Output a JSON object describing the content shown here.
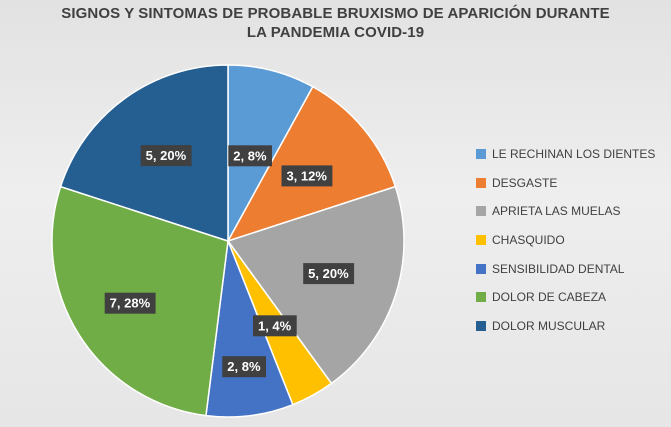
{
  "chart_data": {
    "type": "pie",
    "title_lines": [
      "SIGNOS Y SINTOMAS DE PROBABLE BRUXISMO DE APARICIÓN DURANTE",
      "LA PANDEMIA COVID-19"
    ],
    "legend_position": "right",
    "categories": [
      "LE RECHINAN LOS DIENTES",
      "DESGASTE",
      "APRIETA LAS MUELAS",
      "CHASQUIDO",
      "SENSIBILIDAD DENTAL",
      "DOLOR DE CABEZA",
      "DOLOR MUSCULAR"
    ],
    "values": [
      2,
      3,
      5,
      1,
      2,
      7,
      5
    ],
    "percentages": [
      "8%",
      "12%",
      "20%",
      "4%",
      "8%",
      "28%",
      "20%"
    ],
    "data_labels": [
      "2, 8%",
      "3, 12%",
      "5, 20%",
      "1, 4%",
      "2, 8%",
      "7, 28%",
      "5, 20%"
    ],
    "colors": [
      "#5B9BD5",
      "#ED7D31",
      "#A5A5A5",
      "#FFC000",
      "#4472C4",
      "#70AD47",
      "#255E91"
    ]
  }
}
